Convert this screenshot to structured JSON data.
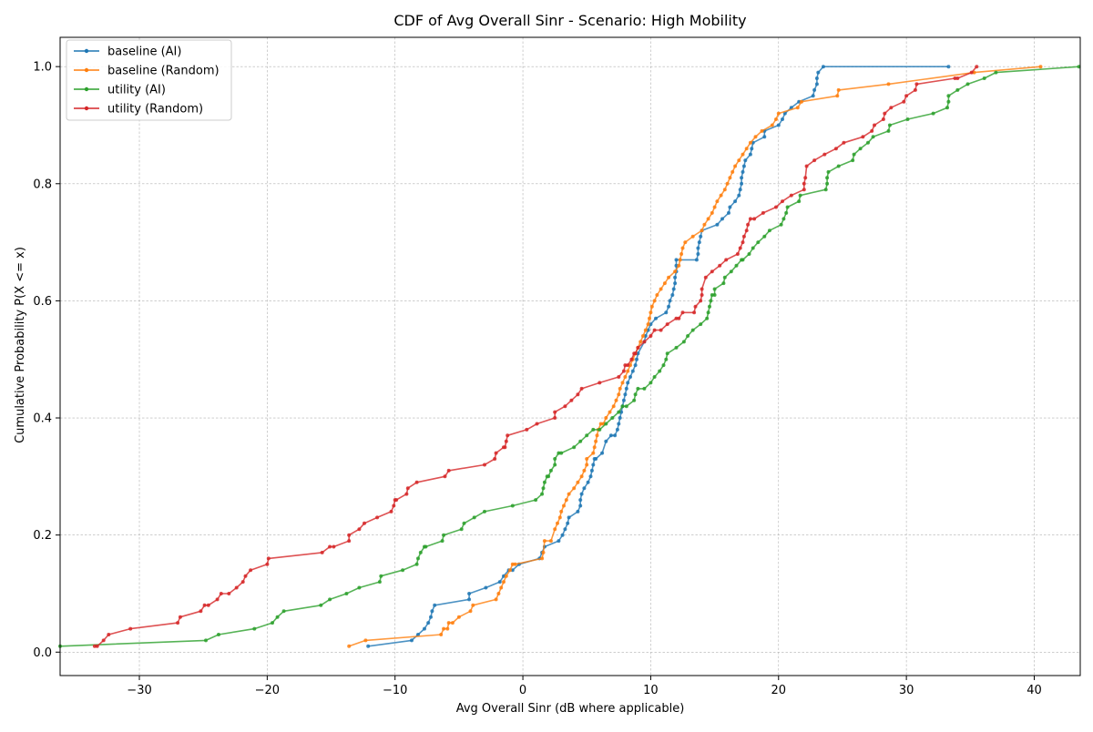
{
  "chart_data": {
    "type": "line",
    "title": "CDF of Avg Overall Sinr - Scenario: High Mobility",
    "xlabel": "Avg Overall Sinr (dB where applicable)",
    "ylabel": "Cumulative Probability P(X <= x)",
    "xlim": [
      -36.2,
      43.6
    ],
    "ylim": [
      -0.04,
      1.05
    ],
    "x_ticks": [
      -30,
      -20,
      -10,
      0,
      10,
      20,
      30,
      40
    ],
    "y_ticks": [
      0.0,
      0.2,
      0.4,
      0.6,
      0.8,
      1.0
    ],
    "x_tick_labels": [
      "−30",
      "−20",
      "−10",
      "0",
      "10",
      "20",
      "30",
      "40"
    ],
    "y_tick_labels": [
      "0.0",
      "0.2",
      "0.4",
      "0.6",
      "0.8",
      "1.0"
    ],
    "grid": true,
    "legend_position": "top-left",
    "series": [
      {
        "name": "baseline (AI)",
        "color": "#1f77b4",
        "x": [
          -12.1,
          -8.7,
          -8.2,
          -7.7,
          -7.4,
          -7.2,
          -7.1,
          -6.9,
          -4.2,
          -4.2,
          -2.9,
          -1.8,
          -1.5,
          -1.1,
          -0.8,
          -0.3,
          1.3,
          1.5,
          1.7,
          2.8,
          3.1,
          3.3,
          3.5,
          3.6,
          4.3,
          4.5,
          4.5,
          4.6,
          4.8,
          5.1,
          5.3,
          5.4,
          5.5,
          5.6,
          5.7,
          6.2,
          6.5,
          6.9,
          7.2,
          7.4,
          7.5,
          7.6,
          7.7,
          7.8,
          7.9,
          8.0,
          8.1,
          8.2,
          8.4,
          8.6,
          8.8,
          8.9,
          9.0,
          9.5,
          9.6,
          9.8,
          10.0,
          10.4,
          11.2,
          11.4,
          11.5,
          11.7,
          11.8,
          11.9,
          11.9,
          12.0,
          12.0,
          12.0,
          13.6,
          13.7,
          13.7,
          13.8,
          13.9,
          14.0,
          15.2,
          15.6,
          16.1,
          16.2,
          16.6,
          16.9,
          17.0,
          17.1,
          17.1,
          17.2,
          17.3,
          17.4,
          17.8,
          17.9,
          18.0,
          18.9,
          18.9,
          20.0,
          20.3,
          20.5,
          21.0,
          21.6,
          22.7,
          22.8,
          23.0,
          23.0,
          23.1,
          23.5,
          33.3
        ],
        "y": [
          0.01,
          0.02,
          0.03,
          0.04,
          0.05,
          0.06,
          0.07,
          0.08,
          0.09,
          0.1,
          0.11,
          0.12,
          0.13,
          0.14,
          0.14,
          0.15,
          0.16,
          0.17,
          0.18,
          0.19,
          0.2,
          0.21,
          0.22,
          0.23,
          0.24,
          0.25,
          0.26,
          0.27,
          0.28,
          0.29,
          0.3,
          0.31,
          0.32,
          0.33,
          0.33,
          0.34,
          0.36,
          0.37,
          0.37,
          0.38,
          0.39,
          0.4,
          0.41,
          0.42,
          0.43,
          0.44,
          0.45,
          0.46,
          0.47,
          0.48,
          0.49,
          0.5,
          0.51,
          0.53,
          0.54,
          0.55,
          0.56,
          0.57,
          0.58,
          0.59,
          0.6,
          0.61,
          0.62,
          0.63,
          0.64,
          0.65,
          0.66,
          0.67,
          0.67,
          0.68,
          0.69,
          0.7,
          0.71,
          0.72,
          0.73,
          0.74,
          0.75,
          0.76,
          0.77,
          0.78,
          0.79,
          0.8,
          0.81,
          0.82,
          0.83,
          0.84,
          0.85,
          0.86,
          0.87,
          0.88,
          0.89,
          0.9,
          0.91,
          0.92,
          0.93,
          0.94,
          0.95,
          0.96,
          0.97,
          0.98,
          0.99,
          1.0,
          1.0
        ]
      },
      {
        "name": "baseline (Random)",
        "color": "#ff7f0e",
        "x": [
          -13.6,
          -12.3,
          -6.4,
          -6.2,
          -5.9,
          -5.8,
          -5.5,
          -5.0,
          -4.1,
          -3.9,
          -2.1,
          -1.9,
          -1.7,
          -1.5,
          -1.3,
          -1.0,
          -0.8,
          -0.6,
          1.5,
          1.6,
          1.7,
          2.2,
          2.5,
          2.7,
          2.9,
          3.0,
          3.2,
          3.4,
          3.6,
          4.0,
          4.3,
          4.6,
          4.8,
          5.0,
          5.0,
          5.5,
          5.6,
          5.7,
          5.8,
          5.9,
          6.1,
          6.3,
          6.5,
          6.8,
          7.1,
          7.3,
          7.5,
          7.6,
          7.8,
          8.0,
          8.2,
          8.4,
          8.6,
          8.8,
          9.0,
          9.2,
          9.4,
          9.6,
          9.8,
          9.9,
          10.0,
          10.1,
          10.3,
          10.5,
          10.8,
          11.1,
          11.4,
          11.9,
          12.2,
          12.3,
          12.4,
          12.5,
          12.7,
          13.3,
          14.0,
          14.2,
          14.5,
          14.8,
          15.0,
          15.2,
          15.5,
          15.8,
          16.0,
          16.2,
          16.4,
          16.6,
          16.9,
          17.2,
          17.5,
          17.8,
          18.2,
          18.7,
          19.5,
          19.8,
          20.0,
          21.5,
          21.8,
          24.6,
          24.7,
          28.6,
          35.3,
          40.5
        ],
        "y": [
          0.01,
          0.02,
          0.03,
          0.04,
          0.04,
          0.05,
          0.05,
          0.06,
          0.07,
          0.08,
          0.09,
          0.1,
          0.11,
          0.12,
          0.13,
          0.14,
          0.15,
          0.15,
          0.16,
          0.17,
          0.19,
          0.19,
          0.21,
          0.22,
          0.23,
          0.24,
          0.25,
          0.26,
          0.27,
          0.28,
          0.29,
          0.3,
          0.31,
          0.32,
          0.33,
          0.34,
          0.35,
          0.36,
          0.37,
          0.38,
          0.39,
          0.39,
          0.4,
          0.41,
          0.42,
          0.43,
          0.44,
          0.45,
          0.46,
          0.47,
          0.48,
          0.49,
          0.5,
          0.51,
          0.52,
          0.53,
          0.54,
          0.55,
          0.56,
          0.57,
          0.58,
          0.59,
          0.6,
          0.61,
          0.62,
          0.63,
          0.64,
          0.65,
          0.66,
          0.67,
          0.68,
          0.69,
          0.7,
          0.71,
          0.72,
          0.73,
          0.74,
          0.75,
          0.76,
          0.77,
          0.78,
          0.79,
          0.8,
          0.81,
          0.82,
          0.83,
          0.84,
          0.85,
          0.86,
          0.87,
          0.88,
          0.89,
          0.9,
          0.91,
          0.92,
          0.93,
          0.94,
          0.95,
          0.96,
          0.97,
          0.99,
          1.0
        ],
        "x_end": 40.5
      },
      {
        "name": "utility (AI)",
        "color": "#2ca02c",
        "x": [
          -36.2,
          -24.8,
          -23.8,
          -21.0,
          -19.6,
          -19.2,
          -18.7,
          -15.8,
          -15.1,
          -13.8,
          -12.8,
          -11.2,
          -11.1,
          -9.4,
          -8.3,
          -8.2,
          -8.0,
          -7.7,
          -7.6,
          -6.3,
          -6.2,
          -4.8,
          -4.6,
          -3.8,
          -3.0,
          -0.8,
          1.0,
          1.5,
          1.6,
          1.7,
          1.9,
          2.0,
          2.2,
          2.5,
          2.5,
          2.8,
          3.0,
          4.0,
          4.5,
          5.0,
          5.5,
          6.0,
          6.5,
          7.0,
          7.5,
          7.8,
          8.1,
          8.7,
          8.8,
          9.0,
          9.5,
          10.0,
          10.3,
          10.7,
          11.0,
          11.2,
          11.3,
          12.0,
          12.6,
          12.9,
          13.3,
          13.9,
          14.4,
          14.5,
          14.6,
          14.7,
          14.8,
          15.0,
          15.0,
          15.7,
          15.8,
          16.3,
          16.7,
          17.1,
          17.2,
          17.7,
          18.0,
          18.4,
          18.9,
          19.3,
          20.2,
          20.4,
          20.6,
          20.7,
          21.6,
          21.7,
          23.7,
          23.8,
          23.8,
          23.9,
          24.7,
          25.8,
          25.9,
          26.4,
          27.0,
          27.4,
          28.6,
          28.7,
          30.1,
          32.1,
          33.2,
          33.3,
          33.3,
          34.0,
          34.8,
          36.1,
          37.0,
          43.5
        ],
        "y": [
          0.01,
          0.02,
          0.03,
          0.04,
          0.05,
          0.06,
          0.07,
          0.08,
          0.09,
          0.1,
          0.11,
          0.12,
          0.13,
          0.14,
          0.15,
          0.16,
          0.17,
          0.18,
          0.18,
          0.19,
          0.2,
          0.21,
          0.22,
          0.23,
          0.24,
          0.25,
          0.26,
          0.27,
          0.28,
          0.29,
          0.3,
          0.3,
          0.31,
          0.32,
          0.33,
          0.34,
          0.34,
          0.35,
          0.36,
          0.37,
          0.38,
          0.38,
          0.39,
          0.4,
          0.41,
          0.42,
          0.42,
          0.43,
          0.44,
          0.45,
          0.45,
          0.46,
          0.47,
          0.48,
          0.49,
          0.5,
          0.51,
          0.52,
          0.53,
          0.54,
          0.55,
          0.56,
          0.57,
          0.58,
          0.59,
          0.6,
          0.61,
          0.61,
          0.62,
          0.63,
          0.64,
          0.65,
          0.66,
          0.67,
          0.67,
          0.68,
          0.69,
          0.7,
          0.71,
          0.72,
          0.73,
          0.74,
          0.75,
          0.76,
          0.77,
          0.78,
          0.79,
          0.8,
          0.81,
          0.82,
          0.83,
          0.84,
          0.85,
          0.86,
          0.87,
          0.88,
          0.89,
          0.9,
          0.91,
          0.92,
          0.93,
          0.94,
          0.95,
          0.96,
          0.97,
          0.98,
          0.99,
          1.0
        ]
      },
      {
        "name": "utility (Random)",
        "color": "#d62728",
        "x": [
          -33.5,
          -33.3,
          -32.8,
          -32.4,
          -30.7,
          -27.0,
          -26.8,
          -25.2,
          -24.9,
          -24.6,
          -23.9,
          -23.6,
          -23.0,
          -22.4,
          -21.9,
          -21.7,
          -21.3,
          -20.0,
          -19.9,
          -15.7,
          -15.1,
          -14.8,
          -13.6,
          -13.6,
          -12.8,
          -12.4,
          -11.4,
          -10.3,
          -10.1,
          -10.0,
          -9.9,
          -9.1,
          -9.0,
          -8.3,
          -6.1,
          -5.8,
          -3.0,
          -2.2,
          -2.1,
          -1.5,
          -1.4,
          -1.3,
          -1.2,
          0.3,
          1.1,
          2.5,
          2.5,
          3.3,
          3.8,
          4.3,
          4.6,
          6.0,
          7.5,
          7.9,
          8.0,
          8.2,
          8.5,
          8.7,
          8.8,
          9.0,
          9.5,
          10.0,
          10.3,
          10.8,
          11.3,
          12.0,
          12.2,
          12.5,
          13.4,
          13.5,
          13.9,
          14.0,
          14.0,
          14.3,
          14.8,
          15.4,
          15.9,
          16.8,
          17.0,
          17.2,
          17.3,
          17.5,
          17.6,
          17.8,
          18.1,
          18.8,
          19.8,
          20.3,
          21.0,
          22.0,
          22.0,
          22.1,
          22.2,
          22.8,
          23.6,
          24.5,
          25.1,
          26.6,
          27.3,
          27.5,
          28.2,
          28.3,
          28.8,
          29.8,
          30.0,
          30.7,
          30.8,
          33.8,
          34.0,
          35.1,
          35.5
        ],
        "y": [
          0.01,
          0.01,
          0.02,
          0.03,
          0.04,
          0.05,
          0.06,
          0.07,
          0.08,
          0.08,
          0.09,
          0.1,
          0.1,
          0.11,
          0.12,
          0.13,
          0.14,
          0.15,
          0.16,
          0.17,
          0.18,
          0.18,
          0.19,
          0.2,
          0.21,
          0.22,
          0.23,
          0.24,
          0.25,
          0.26,
          0.26,
          0.27,
          0.28,
          0.29,
          0.3,
          0.31,
          0.32,
          0.33,
          0.34,
          0.35,
          0.35,
          0.36,
          0.37,
          0.38,
          0.39,
          0.4,
          0.41,
          0.42,
          0.43,
          0.44,
          0.45,
          0.46,
          0.47,
          0.48,
          0.49,
          0.49,
          0.5,
          0.51,
          0.51,
          0.52,
          0.53,
          0.54,
          0.55,
          0.55,
          0.56,
          0.57,
          0.57,
          0.58,
          0.58,
          0.59,
          0.6,
          0.61,
          0.62,
          0.64,
          0.65,
          0.66,
          0.67,
          0.68,
          0.69,
          0.7,
          0.71,
          0.72,
          0.73,
          0.74,
          0.74,
          0.75,
          0.76,
          0.77,
          0.78,
          0.79,
          0.8,
          0.81,
          0.83,
          0.84,
          0.85,
          0.86,
          0.87,
          0.88,
          0.89,
          0.9,
          0.91,
          0.92,
          0.93,
          0.94,
          0.95,
          0.96,
          0.97,
          0.98,
          0.98,
          0.99,
          1.0
        ]
      }
    ]
  }
}
